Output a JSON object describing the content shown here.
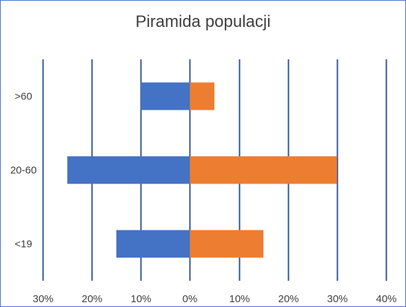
{
  "chart_data": {
    "type": "bar",
    "orientation": "horizontal",
    "title": "Piramida populacji",
    "categories": [
      ">60",
      "20-60",
      "<19"
    ],
    "series": [
      {
        "values": [
          -10,
          -25,
          -15
        ],
        "color": "#4472c4"
      },
      {
        "values": [
          5,
          30,
          15
        ],
        "color": "#ed7d31"
      }
    ],
    "xlim": [
      -30,
      40
    ],
    "x_ticks": [
      -30,
      -20,
      -10,
      0,
      10,
      20,
      30,
      40
    ],
    "x_tick_labels": [
      "30%",
      "20%",
      "10%",
      "0%",
      "10%",
      "20%",
      "30%",
      "40%"
    ],
    "gridlines": "vertical",
    "gridline_color": "#2f5597",
    "legend": "none"
  }
}
